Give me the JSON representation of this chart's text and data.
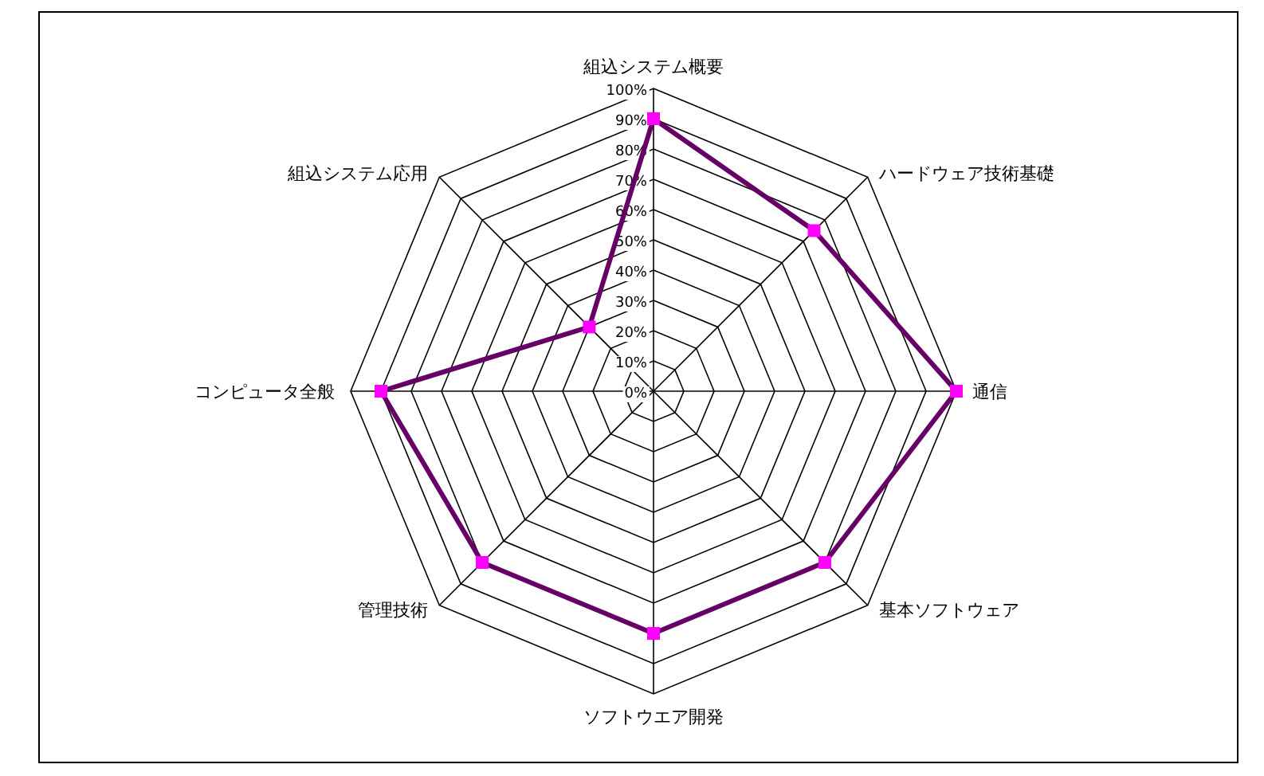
{
  "chart_data": {
    "type": "radar",
    "categories": [
      "組込システム概要",
      "ハードウェア技術基礎",
      "通信",
      "基本ソフトウェア",
      "ソフトウエア開発",
      "管理技術",
      "コンピュータ全般",
      "組込システム応用"
    ],
    "series": [
      {
        "color": "#660066",
        "colors": [
          "#ff00ff",
          "#ff00ff",
          "#ff00ff",
          "#ff00ff",
          "#ff00ff",
          "#ff00ff",
          "#ff00ff",
          "#ff00ff"
        ],
        "values": [
          90,
          75,
          100,
          80,
          80,
          80,
          90,
          30
        ]
      }
    ],
    "ylim": [
      0,
      100
    ],
    "yticks": [
      {
        "value": 0,
        "label": "0%"
      },
      {
        "value": 10,
        "label": "10%"
      },
      {
        "value": 20,
        "label": "20%"
      },
      {
        "value": 30,
        "label": "30%"
      },
      {
        "value": 40,
        "label": "40%"
      },
      {
        "value": 50,
        "label": "50%"
      },
      {
        "value": 60,
        "label": "60%"
      },
      {
        "value": 70,
        "label": "70%"
      },
      {
        "value": 80,
        "label": "80%"
      },
      {
        "value": 90,
        "label": "90%"
      },
      {
        "value": 100,
        "label": "100%"
      }
    ],
    "grid": true,
    "marker": "square",
    "line_style": "solid"
  }
}
